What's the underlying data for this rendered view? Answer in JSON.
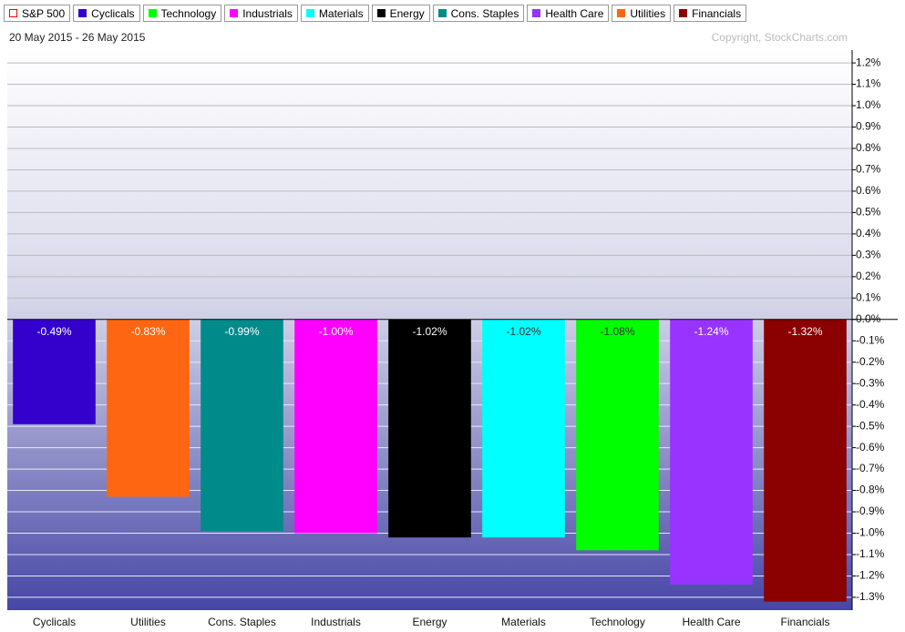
{
  "chart_data": {
    "type": "bar",
    "legend": [
      {
        "name": "S&P 500",
        "color": "#ff0000",
        "outline": true
      },
      {
        "name": "Cyclicals",
        "color": "#3300cc"
      },
      {
        "name": "Technology",
        "color": "#00ff00"
      },
      {
        "name": "Industrials",
        "color": "#ff00ff"
      },
      {
        "name": "Materials",
        "color": "#00ffff"
      },
      {
        "name": "Energy",
        "color": "#000000"
      },
      {
        "name": "Cons. Staples",
        "color": "#008b8b"
      },
      {
        "name": "Health Care",
        "color": "#9933ff"
      },
      {
        "name": "Utilities",
        "color": "#ff6611"
      },
      {
        "name": "Financials",
        "color": "#8b0000"
      }
    ],
    "subtitle": "20 May 2015 - 26 May 2015",
    "credit": "Copyright, StockCharts.com",
    "categories": [
      "Cyclicals",
      "Utilities",
      "Cons. Staples",
      "Industrials",
      "Energy",
      "Materials",
      "Technology",
      "Health Care",
      "Financials"
    ],
    "values": [
      -0.49,
      -0.83,
      -0.99,
      -1.0,
      -1.02,
      -1.02,
      -1.08,
      -1.24,
      -1.32
    ],
    "value_labels": [
      "-0.49%",
      "-0.83%",
      "-0.99%",
      "-1.00%",
      "-1.02%",
      "-1.02%",
      "-1.08%",
      "-1.24%",
      "-1.32%"
    ],
    "colors": [
      "#3300cc",
      "#ff6611",
      "#008b8b",
      "#ff00ff",
      "#000000",
      "#00ffff",
      "#00ff00",
      "#9933ff",
      "#8b0000"
    ],
    "ylim": [
      -1.36,
      1.26
    ],
    "yticks": [
      {
        "value": 1.2,
        "label": "1.2%"
      },
      {
        "value": 1.1,
        "label": "1.1%"
      },
      {
        "value": 1.0,
        "label": "1.0%"
      },
      {
        "value": 0.9,
        "label": "0.9%"
      },
      {
        "value": 0.8,
        "label": "0.8%"
      },
      {
        "value": 0.7,
        "label": "0.7%"
      },
      {
        "value": 0.6,
        "label": "0.6%"
      },
      {
        "value": 0.5,
        "label": "0.5%"
      },
      {
        "value": 0.4,
        "label": "0.4%"
      },
      {
        "value": 0.3,
        "label": "0.3%"
      },
      {
        "value": 0.2,
        "label": "0.2%"
      },
      {
        "value": 0.1,
        "label": "0.1%"
      },
      {
        "value": 0.0,
        "label": "0.0%"
      },
      {
        "value": -0.1,
        "label": "-0.1%"
      },
      {
        "value": -0.2,
        "label": "-0.2%"
      },
      {
        "value": -0.3,
        "label": "-0.3%"
      },
      {
        "value": -0.4,
        "label": "-0.4%"
      },
      {
        "value": -0.5,
        "label": "-0.5%"
      },
      {
        "value": -0.6,
        "label": "-0.6%"
      },
      {
        "value": -0.7,
        "label": "-0.7%"
      },
      {
        "value": -0.8,
        "label": "-0.8%"
      },
      {
        "value": -0.9,
        "label": "-0.9%"
      },
      {
        "value": -1.0,
        "label": "-1.0%"
      },
      {
        "value": -1.1,
        "label": "-1.1%"
      },
      {
        "value": -1.2,
        "label": "-1.2%"
      },
      {
        "value": -1.3,
        "label": "-1.3%"
      }
    ],
    "grid": true
  }
}
